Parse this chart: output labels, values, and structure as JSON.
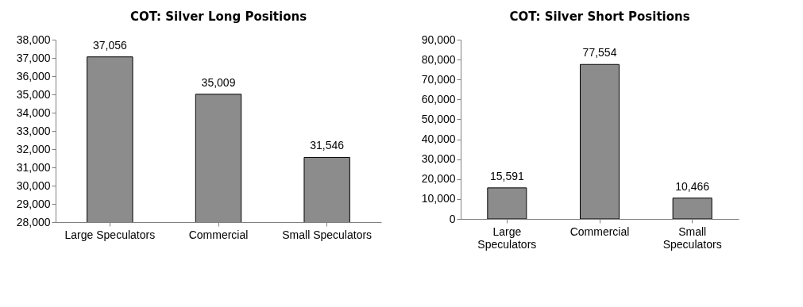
{
  "chart_data": [
    {
      "type": "bar",
      "title": "COT: Silver Long Positions",
      "categories": [
        "Large Speculators",
        "Commercial",
        "Small Speculators"
      ],
      "series": [
        {
          "color": "#8c8c8c",
          "values": [
            37056,
            35009,
            31546
          ],
          "value_labels": [
            "37,056",
            "35,009",
            "31,546"
          ]
        }
      ],
      "ylim": [
        28000,
        38000
      ],
      "yticks": [
        {
          "value": 28000,
          "label": "28,000"
        },
        {
          "value": 29000,
          "label": "29,000"
        },
        {
          "value": 30000,
          "label": "30,000"
        },
        {
          "value": 31000,
          "label": "31,000"
        },
        {
          "value": 32000,
          "label": "32,000"
        },
        {
          "value": 33000,
          "label": "33,000"
        },
        {
          "value": 34000,
          "label": "34,000"
        },
        {
          "value": 35000,
          "label": "35,000"
        },
        {
          "value": 36000,
          "label": "36,000"
        },
        {
          "value": 37000,
          "label": "37,000"
        },
        {
          "value": 38000,
          "label": "38,000"
        }
      ]
    },
    {
      "type": "bar",
      "title": "COT: Silver Short  Positions",
      "categories": [
        "Large Speculators",
        "Commercial",
        "Small Speculators"
      ],
      "series": [
        {
          "color": "#8c8c8c",
          "values": [
            15591,
            77554,
            10466
          ],
          "value_labels": [
            "15,591",
            "77,554",
            "10,466"
          ]
        }
      ],
      "ylim": [
        0,
        90000
      ],
      "yticks": [
        0,
        {
          "value": 10000,
          "label": "10,000"
        },
        {
          "value": 20000,
          "label": "20,000"
        },
        {
          "value": 30000,
          "label": "30,000"
        },
        {
          "value": 40000,
          "label": "40,000"
        },
        {
          "value": 50000,
          "label": "50,000"
        },
        {
          "value": 60000,
          "label": "60,000"
        },
        {
          "value": 70000,
          "label": "70,000"
        },
        {
          "value": 80000,
          "label": "80,000"
        },
        {
          "value": 90000,
          "label": "90,000"
        }
      ]
    }
  ]
}
